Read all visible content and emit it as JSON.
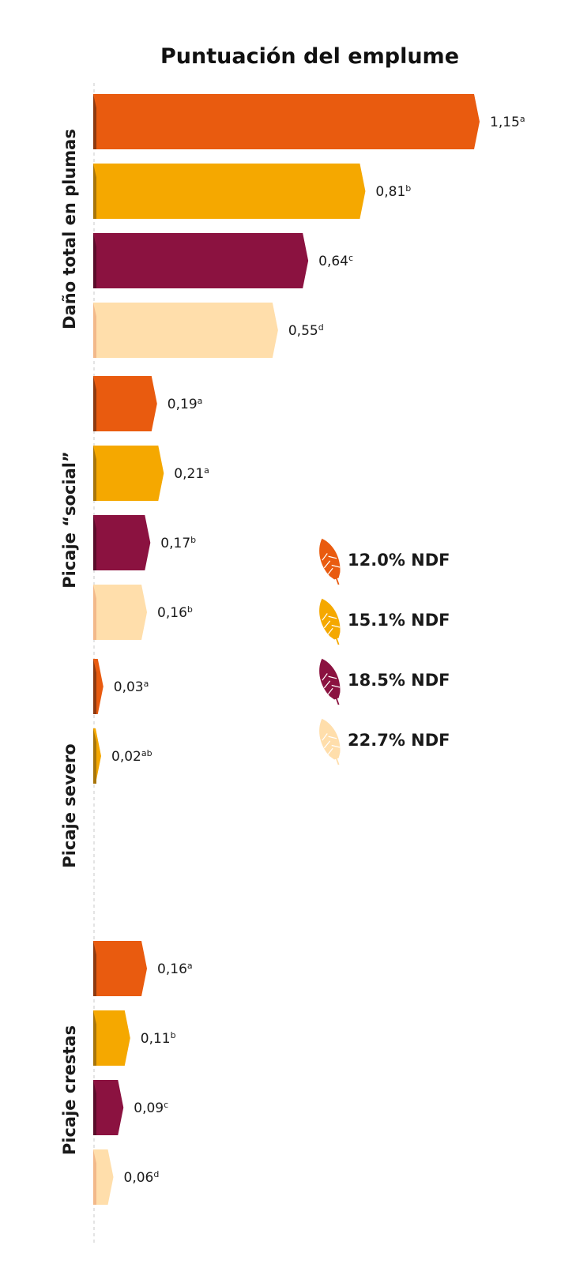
{
  "chart_data": {
    "type": "bar",
    "orientation": "horizontal",
    "title": "Puntuación del emplume",
    "xlim": [
      0,
      1.15
    ],
    "grid": false,
    "legend_position": "right",
    "groups": [
      {
        "label": "Daño total en plumas",
        "bars": [
          {
            "series": "12.0% NDF",
            "value": 1.15,
            "display": "1,15",
            "letter": "a"
          },
          {
            "series": "15.1% NDF",
            "value": 0.81,
            "display": "0,81",
            "letter": "b"
          },
          {
            "series": "18.5% NDF",
            "value": 0.64,
            "display": "0,64",
            "letter": "c"
          },
          {
            "series": "22.7% NDF",
            "value": 0.55,
            "display": "0,55",
            "letter": "d"
          }
        ]
      },
      {
        "label": "Picaje “social”",
        "bars": [
          {
            "series": "12.0% NDF",
            "value": 0.19,
            "display": "0,19",
            "letter": "a"
          },
          {
            "series": "15.1% NDF",
            "value": 0.21,
            "display": "0,21",
            "letter": "a"
          },
          {
            "series": "18.5% NDF",
            "value": 0.17,
            "display": "0,17",
            "letter": "b"
          },
          {
            "series": "22.7% NDF",
            "value": 0.16,
            "display": "0,16",
            "letter": "b"
          }
        ]
      },
      {
        "label": "Picaje severo",
        "bars": [
          {
            "series": "12.0% NDF",
            "value": 0.03,
            "display": "0,03",
            "letter": "a"
          },
          {
            "series": "15.1% NDF",
            "value": 0.02,
            "display": "0,02",
            "letter": "ab"
          }
        ]
      },
      {
        "label": "Picaje crestas",
        "bars": [
          {
            "series": "12.0% NDF",
            "value": 0.16,
            "display": "0,16",
            "letter": "a"
          },
          {
            "series": "15.1% NDF",
            "value": 0.11,
            "display": "0,11",
            "letter": "b"
          },
          {
            "series": "18.5% NDF",
            "value": 0.09,
            "display": "0,09",
            "letter": "c"
          },
          {
            "series": "22.7% NDF",
            "value": 0.06,
            "display": "0,06",
            "letter": "d"
          }
        ]
      }
    ],
    "series": [
      {
        "name": "12.0% NDF",
        "color": "#e95b0f",
        "shade": "#8e3a10",
        "icon": "feather-icon"
      },
      {
        "name": "15.1% NDF",
        "color": "#f5a800",
        "shade": "#a8750a",
        "icon": "feather-icon"
      },
      {
        "name": "18.5% NDF",
        "color": "#8b1240",
        "shade": "#5a0c2a",
        "icon": "feather-icon"
      },
      {
        "name": "22.7% NDF",
        "color": "#ffdeab",
        "shade": "#f2b98a",
        "icon": "feather-icon"
      }
    ]
  }
}
